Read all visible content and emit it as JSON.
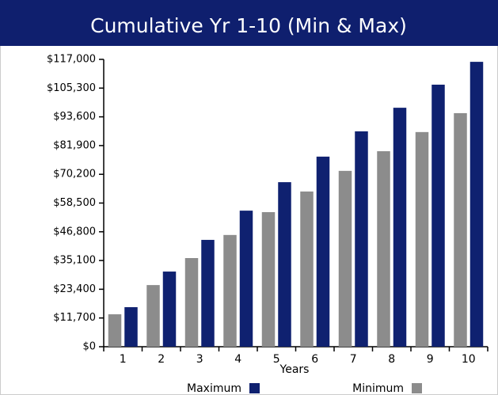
{
  "chart_data": {
    "type": "bar",
    "title": "Cumulative Yr 1-10 (Min & Max)",
    "x_label": "Years",
    "categories": [
      "1",
      "2",
      "3",
      "4",
      "5",
      "6",
      "7",
      "8",
      "9",
      "10"
    ],
    "series": [
      {
        "name": "Maximum",
        "color": "#0f2170",
        "values": [
          16100,
          30600,
          43500,
          55400,
          67000,
          77400,
          87700,
          97300,
          106700,
          116000
        ]
      },
      {
        "name": "Minimum",
        "color": "#8c8c8c",
        "values": [
          13200,
          25100,
          36100,
          45500,
          54800,
          63200,
          71600,
          79600,
          87400,
          95100
        ]
      }
    ],
    "ylim": [
      0,
      117000
    ],
    "yticks": [
      {
        "value": 0,
        "label": "$0"
      },
      {
        "value": 11700,
        "label": "$11,700"
      },
      {
        "value": 23400,
        "label": "$23,400"
      },
      {
        "value": 35100,
        "label": "$35,100"
      },
      {
        "value": 46800,
        "label": "$46,800"
      },
      {
        "value": 58500,
        "label": "$58,500"
      },
      {
        "value": 70200,
        "label": "$70,200"
      },
      {
        "value": 81900,
        "label": "$81,900"
      },
      {
        "value": 93600,
        "label": "$93,600"
      },
      {
        "value": 105300,
        "label": "$105,300"
      },
      {
        "value": 117000,
        "label": "$117,000"
      }
    ],
    "legend": "bottom"
  }
}
